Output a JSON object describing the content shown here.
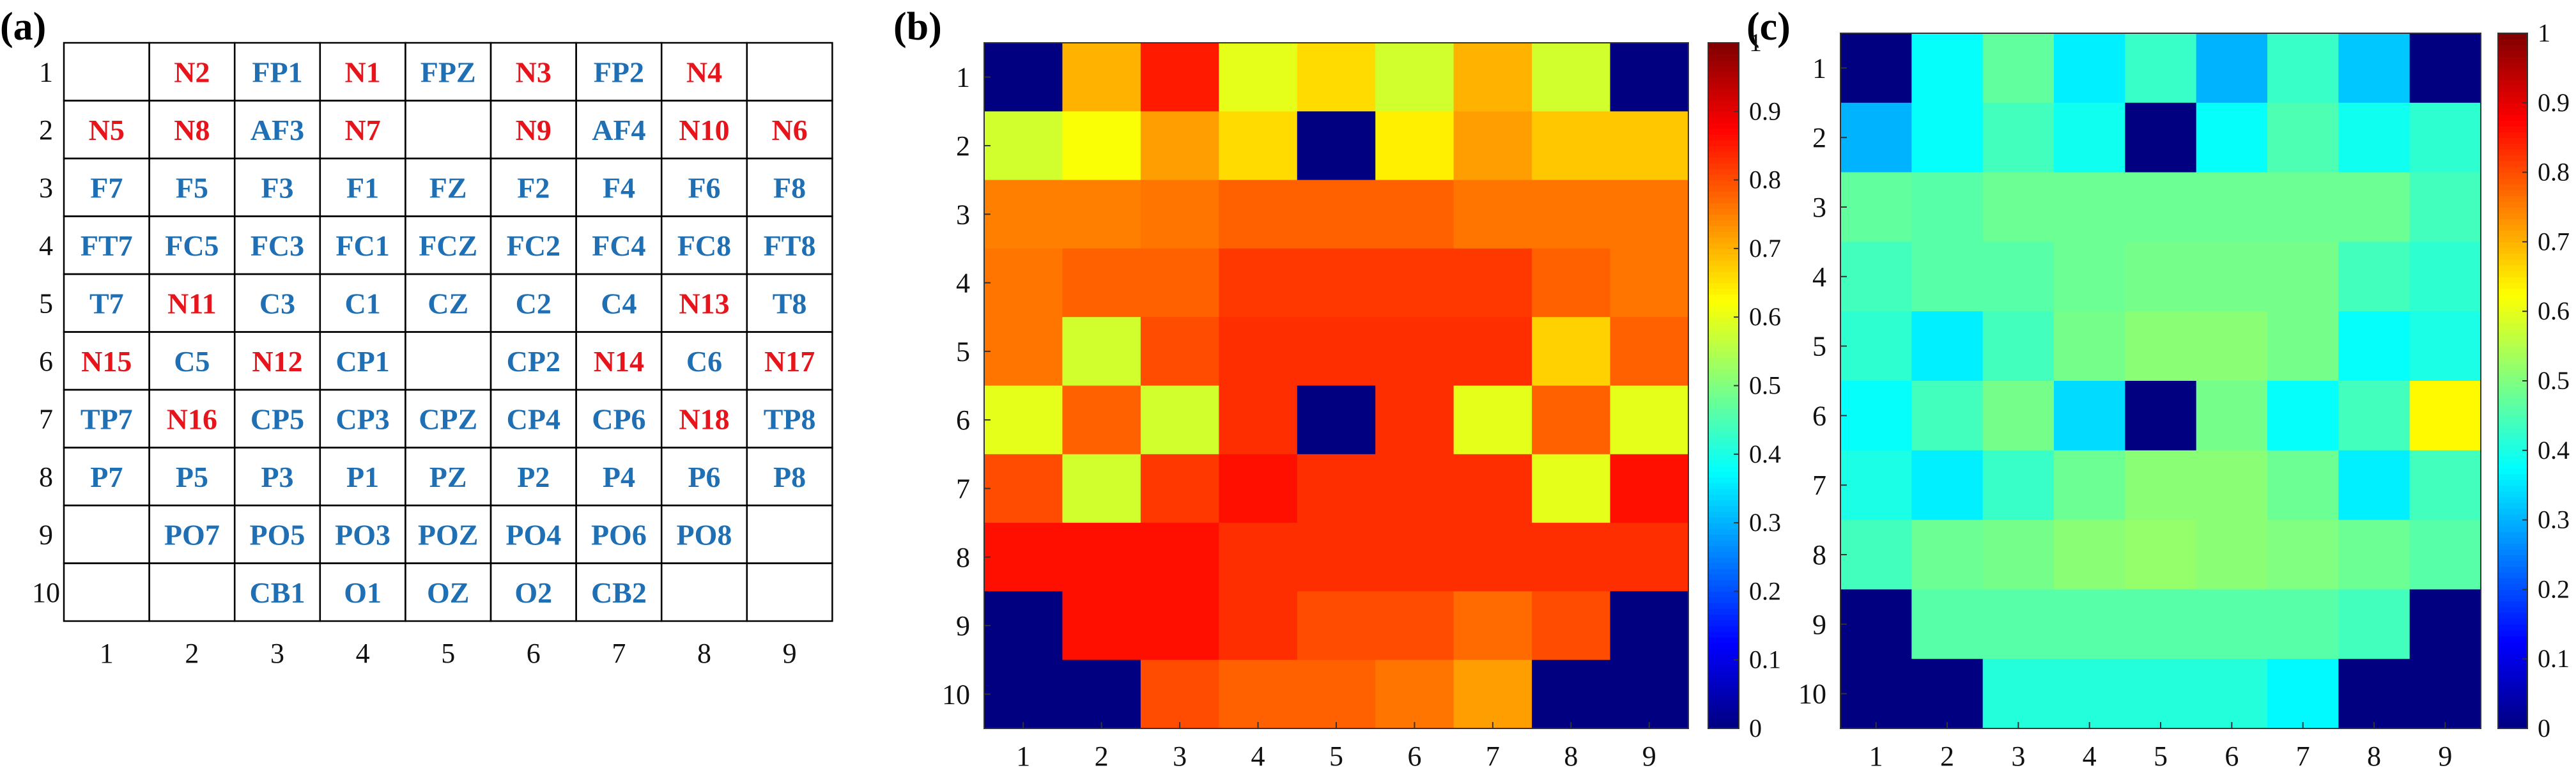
{
  "panels": {
    "a": {
      "label": "(a)",
      "x_ticks": [
        "1",
        "2",
        "3",
        "4",
        "5",
        "6",
        "7",
        "8",
        "9"
      ],
      "y_ticks": [
        "1",
        "2",
        "3",
        "4",
        "5",
        "6",
        "7",
        "8",
        "9",
        "10"
      ],
      "colors": {
        "b": "#1f6fb4",
        "r": "#e8141c"
      },
      "cells": [
        [
          [
            "",
            ""
          ],
          [
            "N2",
            "r"
          ],
          [
            "FP1",
            "b"
          ],
          [
            "N1",
            "r"
          ],
          [
            "FPZ",
            "b"
          ],
          [
            "N3",
            "r"
          ],
          [
            "FP2",
            "b"
          ],
          [
            "N4",
            "r"
          ],
          [
            "",
            ""
          ]
        ],
        [
          [
            "N5",
            "r"
          ],
          [
            "N8",
            "r"
          ],
          [
            "AF3",
            "b"
          ],
          [
            "N7",
            "r"
          ],
          [
            "",
            ""
          ],
          [
            "N9",
            "r"
          ],
          [
            "AF4",
            "b"
          ],
          [
            "N10",
            "r"
          ],
          [
            "N6",
            "r"
          ]
        ],
        [
          [
            "F7",
            "b"
          ],
          [
            "F5",
            "b"
          ],
          [
            "F3",
            "b"
          ],
          [
            "F1",
            "b"
          ],
          [
            "FZ",
            "b"
          ],
          [
            "F2",
            "b"
          ],
          [
            "F4",
            "b"
          ],
          [
            "F6",
            "b"
          ],
          [
            "F8",
            "b"
          ]
        ],
        [
          [
            "FT7",
            "b"
          ],
          [
            "FC5",
            "b"
          ],
          [
            "FC3",
            "b"
          ],
          [
            "FC1",
            "b"
          ],
          [
            "FCZ",
            "b"
          ],
          [
            "FC2",
            "b"
          ],
          [
            "FC4",
            "b"
          ],
          [
            "FC8",
            "b"
          ],
          [
            "FT8",
            "b"
          ]
        ],
        [
          [
            "T7",
            "b"
          ],
          [
            "N11",
            "r"
          ],
          [
            "C3",
            "b"
          ],
          [
            "C1",
            "b"
          ],
          [
            "CZ",
            "b"
          ],
          [
            "C2",
            "b"
          ],
          [
            "C4",
            "b"
          ],
          [
            "N13",
            "r"
          ],
          [
            "T8",
            "b"
          ]
        ],
        [
          [
            "N15",
            "r"
          ],
          [
            "C5",
            "b"
          ],
          [
            "N12",
            "r"
          ],
          [
            "CP1",
            "b"
          ],
          [
            "",
            ""
          ],
          [
            "CP2",
            "b"
          ],
          [
            "N14",
            "r"
          ],
          [
            "C6",
            "b"
          ],
          [
            "N17",
            "r"
          ]
        ],
        [
          [
            "TP7",
            "b"
          ],
          [
            "N16",
            "r"
          ],
          [
            "CP5",
            "b"
          ],
          [
            "CP3",
            "b"
          ],
          [
            "CPZ",
            "b"
          ],
          [
            "CP4",
            "b"
          ],
          [
            "CP6",
            "b"
          ],
          [
            "N18",
            "r"
          ],
          [
            "TP8",
            "b"
          ]
        ],
        [
          [
            "P7",
            "b"
          ],
          [
            "P5",
            "b"
          ],
          [
            "P3",
            "b"
          ],
          [
            "P1",
            "b"
          ],
          [
            "PZ",
            "b"
          ],
          [
            "P2",
            "b"
          ],
          [
            "P4",
            "b"
          ],
          [
            "P6",
            "b"
          ],
          [
            "P8",
            "b"
          ]
        ],
        [
          [
            "",
            ""
          ],
          [
            "PO7",
            "b"
          ],
          [
            "PO5",
            "b"
          ],
          [
            "PO3",
            "b"
          ],
          [
            "POZ",
            "b"
          ],
          [
            "PO4",
            "b"
          ],
          [
            "PO6",
            "b"
          ],
          [
            "PO8",
            "b"
          ],
          [
            "",
            ""
          ]
        ],
        [
          [
            "",
            ""
          ],
          [
            "",
            ""
          ],
          [
            "CB1",
            "b"
          ],
          [
            "O1",
            "b"
          ],
          [
            "OZ",
            "b"
          ],
          [
            "O2",
            "b"
          ],
          [
            "CB2",
            "b"
          ],
          [
            "",
            ""
          ],
          [
            "",
            ""
          ]
        ]
      ]
    },
    "b": {
      "label": "(b)",
      "x_ticks": [
        "1",
        "2",
        "3",
        "4",
        "5",
        "6",
        "7",
        "8",
        "9"
      ],
      "y_ticks": [
        "1",
        "2",
        "3",
        "4",
        "5",
        "6",
        "7",
        "8",
        "9",
        "10"
      ],
      "colorbar_ticks": [
        "0",
        "0.1",
        "0.2",
        "0.3",
        "0.4",
        "0.5",
        "0.6",
        "0.7",
        "0.8",
        "0.9",
        "1"
      ]
    },
    "c": {
      "label": "(c)",
      "x_ticks": [
        "1",
        "2",
        "3",
        "4",
        "5",
        "6",
        "7",
        "8",
        "9"
      ],
      "y_ticks": [
        "1",
        "2",
        "3",
        "4",
        "5",
        "6",
        "7",
        "8",
        "9",
        "10"
      ],
      "colorbar_ticks": [
        "0",
        "0.1",
        "0.2",
        "0.3",
        "0.4",
        "0.5",
        "0.6",
        "0.7",
        "0.8",
        "0.9",
        "1"
      ]
    }
  },
  "chart_data": [
    {
      "type": "table",
      "title": "",
      "rows": 10,
      "cols": 9
    },
    {
      "type": "heatmap",
      "title": "",
      "x": [
        1,
        2,
        3,
        4,
        5,
        6,
        7,
        8,
        9
      ],
      "y": [
        1,
        2,
        3,
        4,
        5,
        6,
        7,
        8,
        9,
        10
      ],
      "clim": [
        0,
        1
      ],
      "colormap": "jet",
      "values": [
        [
          0.0,
          0.7,
          0.85,
          0.6,
          0.66,
          0.58,
          0.7,
          0.58,
          0.0
        ],
        [
          0.58,
          0.62,
          0.72,
          0.66,
          0.0,
          0.64,
          0.72,
          0.68,
          0.68
        ],
        [
          0.75,
          0.75,
          0.76,
          0.78,
          0.78,
          0.78,
          0.76,
          0.76,
          0.76
        ],
        [
          0.76,
          0.78,
          0.78,
          0.82,
          0.82,
          0.82,
          0.82,
          0.78,
          0.76
        ],
        [
          0.76,
          0.58,
          0.8,
          0.83,
          0.83,
          0.83,
          0.83,
          0.67,
          0.78
        ],
        [
          0.6,
          0.78,
          0.58,
          0.83,
          0.0,
          0.83,
          0.6,
          0.78,
          0.6
        ],
        [
          0.8,
          0.58,
          0.82,
          0.86,
          0.83,
          0.83,
          0.83,
          0.6,
          0.86
        ],
        [
          0.86,
          0.86,
          0.86,
          0.83,
          0.83,
          0.83,
          0.83,
          0.83,
          0.83
        ],
        [
          0.0,
          0.86,
          0.86,
          0.83,
          0.8,
          0.8,
          0.77,
          0.8,
          0.0
        ],
        [
          0.0,
          0.0,
          0.8,
          0.78,
          0.78,
          0.76,
          0.72,
          0.0,
          0.0
        ]
      ]
    },
    {
      "type": "heatmap",
      "title": "",
      "x": [
        1,
        2,
        3,
        4,
        5,
        6,
        7,
        8,
        9
      ],
      "y": [
        1,
        2,
        3,
        4,
        5,
        6,
        7,
        8,
        9,
        10
      ],
      "clim": [
        0,
        1
      ],
      "colormap": "jet",
      "values": [
        [
          0.0,
          0.38,
          0.47,
          0.36,
          0.43,
          0.3,
          0.43,
          0.32,
          0.0
        ],
        [
          0.3,
          0.38,
          0.44,
          0.39,
          0.0,
          0.38,
          0.45,
          0.39,
          0.42
        ],
        [
          0.47,
          0.46,
          0.48,
          0.48,
          0.48,
          0.48,
          0.48,
          0.48,
          0.44
        ],
        [
          0.44,
          0.46,
          0.46,
          0.48,
          0.49,
          0.49,
          0.49,
          0.44,
          0.42
        ],
        [
          0.42,
          0.36,
          0.44,
          0.49,
          0.51,
          0.51,
          0.49,
          0.38,
          0.4
        ],
        [
          0.38,
          0.44,
          0.49,
          0.34,
          0.0,
          0.49,
          0.38,
          0.44,
          0.63
        ],
        [
          0.4,
          0.36,
          0.43,
          0.48,
          0.51,
          0.51,
          0.48,
          0.36,
          0.44
        ],
        [
          0.44,
          0.48,
          0.49,
          0.51,
          0.52,
          0.51,
          0.5,
          0.48,
          0.46
        ],
        [
          0.0,
          0.46,
          0.46,
          0.46,
          0.46,
          0.46,
          0.46,
          0.44,
          0.0
        ],
        [
          0.0,
          0.0,
          0.41,
          0.41,
          0.41,
          0.41,
          0.37,
          0.0,
          0.0
        ]
      ]
    }
  ]
}
